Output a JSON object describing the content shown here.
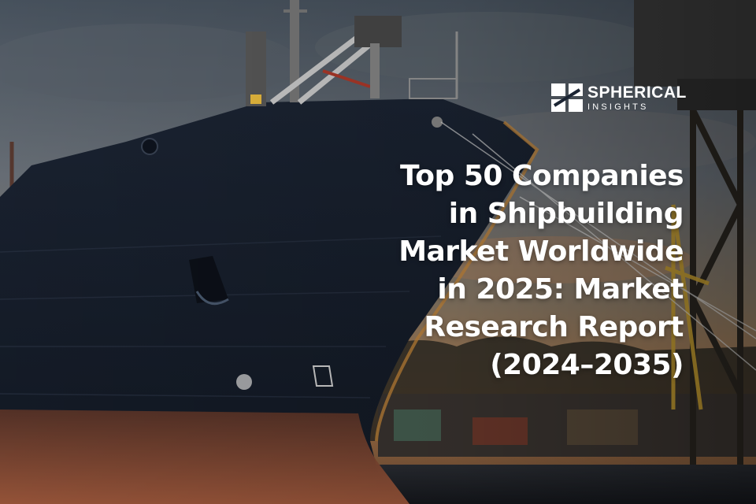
{
  "brand": {
    "name": "SPHERICAL",
    "tagline": "INSIGHTS"
  },
  "headline": {
    "lines": [
      "Top 50 Companies",
      "in Shipbuilding",
      "Market Worldwide",
      "in 2025: Market",
      "Research Report",
      "(2024–2035)"
    ]
  },
  "image": {
    "subject": "cargo-ship-bow-at-shipyard-dusk"
  }
}
